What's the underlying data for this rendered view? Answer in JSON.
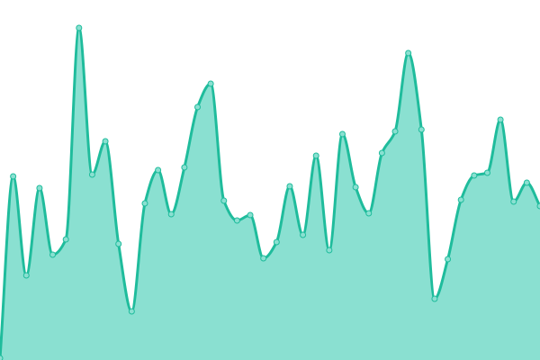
{
  "chart_data": {
    "type": "area",
    "curve": "smooth",
    "axes_visible": false,
    "grid": false,
    "ylim": [
      0,
      400
    ],
    "x": [
      0,
      1,
      2,
      3,
      4,
      5,
      6,
      7,
      8,
      9,
      10,
      11,
      12,
      13,
      14,
      15,
      16,
      17,
      18,
      19,
      20,
      21,
      22,
      23,
      24,
      25,
      26,
      27,
      28,
      29,
      30,
      31,
      32,
      33,
      34,
      35,
      36,
      37,
      38,
      39,
      40,
      41
    ],
    "series": [
      {
        "values": [
          2,
          204,
          94,
          191,
          117,
          134,
          369,
          206,
          243,
          129,
          54,
          174,
          211,
          162,
          214,
          281,
          307,
          177,
          155,
          161,
          113,
          131,
          193,
          139,
          227,
          122,
          251,
          192,
          163,
          230,
          254,
          341,
          256,
          68,
          112,
          178,
          205,
          208,
          267,
          176,
          197,
          171
        ],
        "line_color": "#1fbc9c",
        "fill_color": "#8ae0d1",
        "marker_fill": "#8ae0d1",
        "marker_stroke": "#1fbc9c"
      }
    ]
  }
}
